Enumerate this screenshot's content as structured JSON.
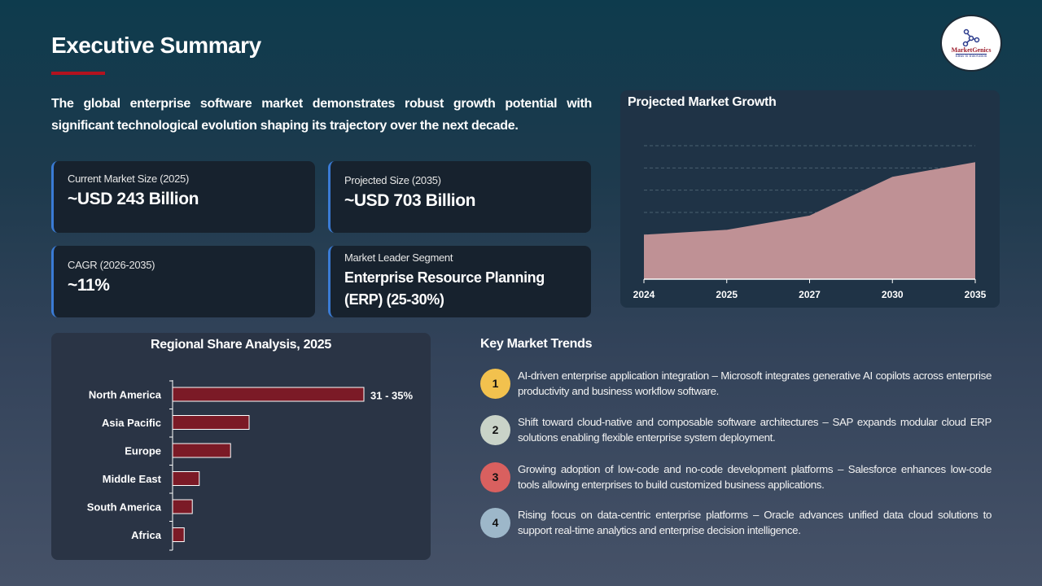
{
  "header": {
    "title": "Executive Summary",
    "logo_name": "MarketGenics",
    "logo_tagline": "Ideas to Innovation"
  },
  "intro": "The global enterprise software market demonstrates robust growth potential with significant technological evolution shaping its trajectory over the next decade.",
  "cards": [
    {
      "label": "Current Market Size (2025)",
      "value": "~USD 243 Billion"
    },
    {
      "label": "Projected Size (2035)",
      "value": "~USD 703 Billion"
    },
    {
      "label": "CAGR (2026-2035)",
      "value": "~11%"
    },
    {
      "label": "Market Leader Segment",
      "value": "Enterprise Resource Planning (ERP) (25-30%)"
    }
  ],
  "accent_color": "#3a7bd5",
  "chart_data": [
    {
      "type": "area",
      "title": "Projected Market Growth",
      "categories": [
        "2024",
        "2025",
        "2027",
        "2030",
        "2035"
      ],
      "values": [
        100,
        111,
        143,
        230,
        263
      ],
      "ylim": [
        0,
        300
      ],
      "grid": true,
      "y_axis_labels": false,
      "color": "#bf9195"
    },
    {
      "type": "bar",
      "orientation": "horizontal",
      "title": "Regional Share Analysis, 2025",
      "categories": [
        "North America",
        "Asia Pacific",
        "Europe",
        "Middle East",
        "South America",
        "Africa"
      ],
      "values": [
        33,
        13.2,
        10,
        4.6,
        3.4,
        2
      ],
      "data_labels": [
        "31 - 35%",
        "",
        "",
        "",
        "",
        ""
      ],
      "unit": "%",
      "color": "#7b1a26"
    }
  ],
  "trends": {
    "title": "Key Market Trends",
    "items": [
      {
        "num": "1",
        "color": "#f2c14e",
        "text": "AI-driven enterprise application integration – Microsoft integrates generative AI copilots across enterprise productivity and business workflow software."
      },
      {
        "num": "2",
        "color": "#c9d3c8",
        "text": "Shift toward cloud-native and composable software architectures – SAP expands modular cloud ERP solutions enabling flexible enterprise system deployment."
      },
      {
        "num": "3",
        "color": "#d9605f",
        "text": "Growing adoption of low-code and no-code development platforms – Salesforce enhances low-code tools allowing enterprises to build customized business applications."
      },
      {
        "num": "4",
        "color": "#9db7c9",
        "text": "Rising focus on data-centric enterprise platforms – Oracle advances unified data cloud solutions to support real-time analytics and enterprise decision intelligence."
      }
    ]
  }
}
